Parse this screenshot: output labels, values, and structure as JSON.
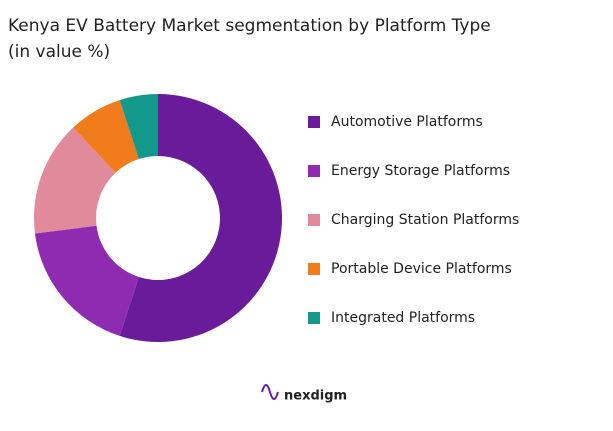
{
  "chart_data": {
    "type": "donut",
    "title": "Kenya EV Battery Market segmentation by Platform Type",
    "subtitle": "(in value %)",
    "categories": [
      "Automotive Platforms",
      "Energy Storage Platforms",
      "Charging Station Platforms",
      "Portable Device Platforms",
      "Integrated Platforms"
    ],
    "values": [
      55,
      18,
      15,
      7,
      5
    ],
    "colors": [
      "#6a1b9a",
      "#8e2bb0",
      "#e08a9c",
      "#f07c1c",
      "#12998c"
    ],
    "legend": "right",
    "brand": "nexdigm"
  }
}
